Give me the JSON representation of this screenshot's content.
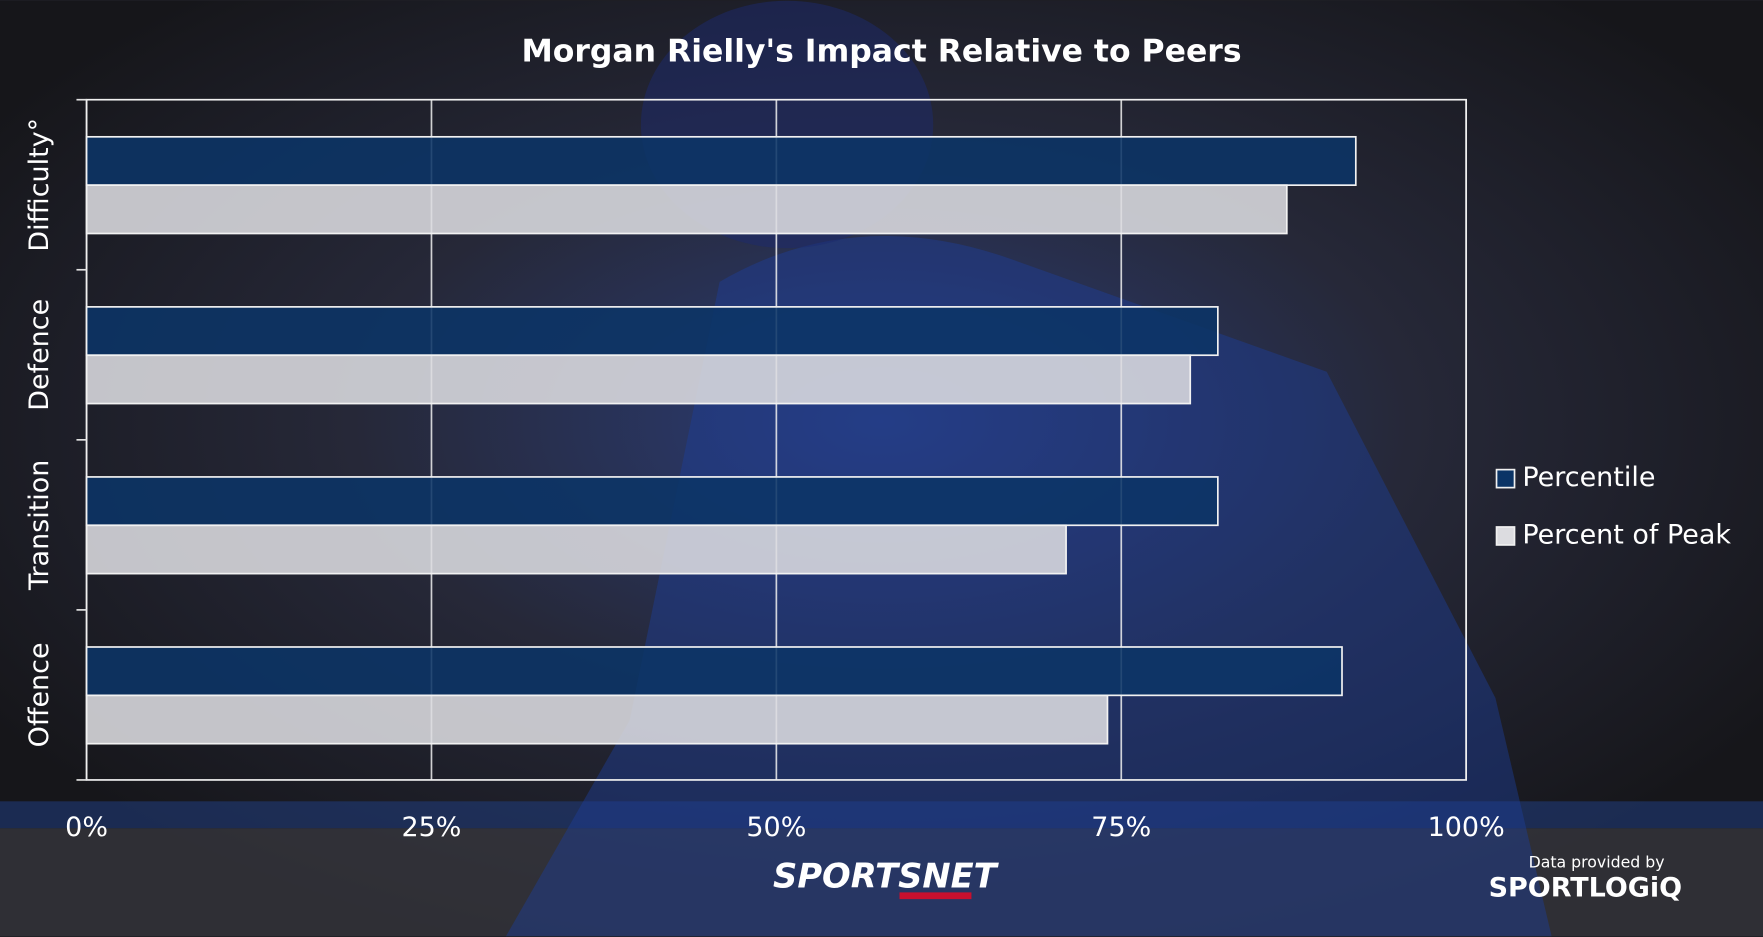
{
  "chart_data": {
    "type": "barh",
    "title": "Morgan Rielly's Impact Relative to Peers",
    "categories": [
      "Difficulty°",
      "Defence",
      "Transition",
      "Offence"
    ],
    "series": [
      {
        "name": "Percentile",
        "color": "#0b3466",
        "values": [
          92,
          82,
          82,
          91
        ]
      },
      {
        "name": "Percent of Peak",
        "color": "#dcdce0",
        "values": [
          87,
          80,
          71,
          74
        ]
      }
    ],
    "xlim": [
      0,
      100
    ],
    "xticks": [
      {
        "value": 0,
        "label": "0%"
      },
      {
        "value": 25,
        "label": "25%"
      },
      {
        "value": 50,
        "label": "50%"
      },
      {
        "value": 75,
        "label": "75%"
      },
      {
        "value": 100,
        "label": "100%"
      }
    ],
    "grid": true,
    "legend": "right"
  },
  "footer": {
    "brand": "SPORTSNET",
    "credit": "Data provided by",
    "provider": "SPORTLOGiQ"
  }
}
